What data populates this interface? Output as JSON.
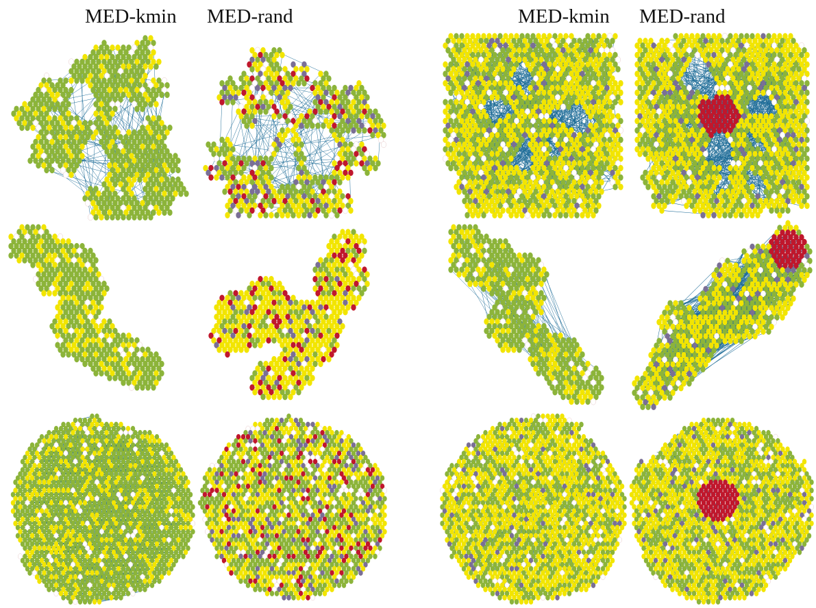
{
  "headers": {
    "left_a": "MED-kmin",
    "left_b": "MED-rand",
    "right_a": "MED-kmin",
    "right_b": "MED-rand"
  },
  "colors": {
    "yellow": "#f2e500",
    "green": "#8cb43a",
    "red": "#c0172c",
    "purple": "#7a6f95",
    "edge": "#1f6d98",
    "white": "#ffffff"
  },
  "panels": [
    {
      "id": "left-top-kmin",
      "shape": "branch-thick",
      "edges": "light",
      "mix": "green",
      "core": "none"
    },
    {
      "id": "left-top-rand",
      "shape": "branch-thin",
      "edges": "light",
      "mix": "mixed",
      "core": "none"
    },
    {
      "id": "left-mid-kmin",
      "shape": "blob-diag",
      "edges": "none",
      "mix": "green",
      "core": "none"
    },
    {
      "id": "left-mid-rand",
      "shape": "blob-loose",
      "edges": "none",
      "mix": "yellowred",
      "core": "none"
    },
    {
      "id": "left-bot-kmin",
      "shape": "disc",
      "edges": "dense-local",
      "mix": "green",
      "core": "none"
    },
    {
      "id": "left-bot-rand",
      "shape": "disc",
      "edges": "none",
      "mix": "mixed",
      "core": "none"
    },
    {
      "id": "right-top-kmin",
      "shape": "square-branch",
      "edges": "heavy",
      "mix": "yellowgreen",
      "core": "none"
    },
    {
      "id": "right-top-rand",
      "shape": "square-branch",
      "edges": "heavy",
      "mix": "yellowgreen",
      "core": "red"
    },
    {
      "id": "right-mid-kmin",
      "shape": "blob-diag",
      "edges": "light",
      "mix": "green",
      "core": "none"
    },
    {
      "id": "right-mid-rand",
      "shape": "blob-right",
      "edges": "heavy",
      "mix": "yellowgreen",
      "core": "red-corner"
    },
    {
      "id": "right-bot-kmin",
      "shape": "disc",
      "edges": "outline",
      "mix": "yellowgreen",
      "core": "none"
    },
    {
      "id": "right-bot-rand",
      "shape": "disc",
      "edges": "outline",
      "mix": "yellowgreen",
      "core": "red"
    }
  ]
}
